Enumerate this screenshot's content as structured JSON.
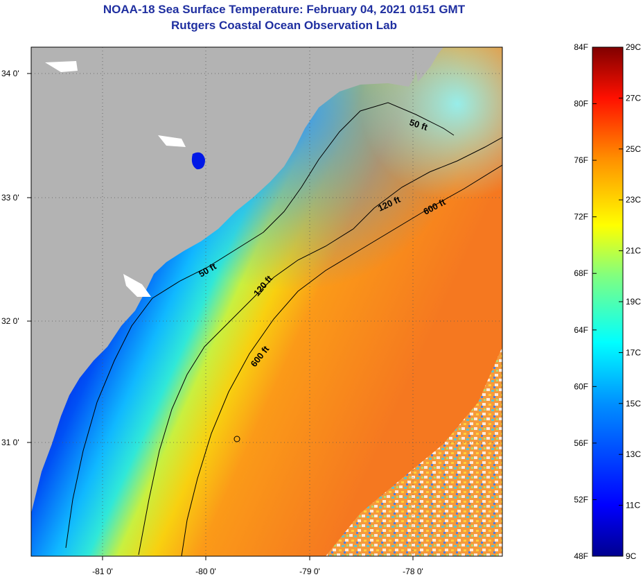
{
  "title": {
    "line1": "NOAA-18 Sea Surface Temperature:  February 04, 2021 0151 GMT",
    "line2": "Rutgers Coastal Ocean Observation Lab"
  },
  "axes": {
    "longitude_labels": [
      "-81 0'",
      "-80 0'",
      "-79 0'",
      "-78 0'"
    ],
    "latitude_labels": [
      "34 0'",
      "33 0'",
      "32 0'",
      "31 0'"
    ]
  },
  "contour_labels": [
    "50 ft",
    "120 ft",
    "600 ft",
    "50 ft",
    "120 ft",
    "600 ft"
  ],
  "colorbar": {
    "fahrenheit": [
      "84F",
      "80F",
      "76F",
      "72F",
      "68F",
      "64F",
      "60F",
      "56F",
      "52F",
      "48F"
    ],
    "celsius": [
      "29C",
      "27C",
      "25C",
      "23C",
      "21C",
      "19C",
      "17C",
      "15C",
      "13C",
      "11C",
      "9C"
    ]
  },
  "colors": {
    "land": "#b3b3b3",
    "title": "#1f2fa0",
    "cold": "#00008f",
    "warm": "#800000"
  }
}
